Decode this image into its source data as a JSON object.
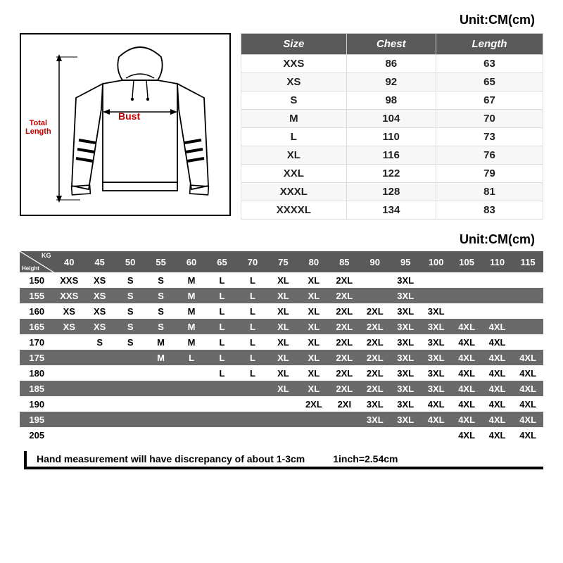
{
  "unit_label_top": "Unit:CM(cm)",
  "unit_label_bottom": "Unit:CM(cm)",
  "diagram": {
    "total_length_label": "Total\nLength",
    "bust_label": "Bust"
  },
  "size_table": {
    "columns": [
      "Size",
      "Chest",
      "Length"
    ],
    "rows": [
      [
        "XXS",
        "86",
        "63"
      ],
      [
        "XS",
        "92",
        "65"
      ],
      [
        "S",
        "98",
        "67"
      ],
      [
        "M",
        "104",
        "70"
      ],
      [
        "L",
        "110",
        "73"
      ],
      [
        "XL",
        "116",
        "76"
      ],
      [
        "XXL",
        "122",
        "79"
      ],
      [
        "XXXL",
        "128",
        "81"
      ],
      [
        "XXXXL",
        "134",
        "83"
      ]
    ],
    "header_bg": "#5a5a5a",
    "header_fg": "#ffffff"
  },
  "rec_table": {
    "corner_kg": "KG",
    "corner_height": "Height",
    "weights": [
      "40",
      "45",
      "50",
      "55",
      "60",
      "65",
      "70",
      "75",
      "80",
      "85",
      "90",
      "95",
      "100",
      "105",
      "110",
      "115"
    ],
    "heights": [
      "150",
      "155",
      "160",
      "165",
      "170",
      "175",
      "180",
      "185",
      "190",
      "195",
      "205"
    ],
    "cells": [
      [
        "XXS",
        "XS",
        "S",
        "S",
        "M",
        "L",
        "L",
        "XL",
        "XL",
        "2XL",
        "",
        "3XL",
        "",
        "",
        "",
        ""
      ],
      [
        "XXS",
        "XS",
        "S",
        "S",
        "M",
        "L",
        "L",
        "XL",
        "XL",
        "2XL",
        "",
        "3XL",
        "",
        "",
        "",
        ""
      ],
      [
        "XS",
        "XS",
        "S",
        "S",
        "M",
        "L",
        "L",
        "XL",
        "XL",
        "2XL",
        "2XL",
        "3XL",
        "3XL",
        "",
        "",
        ""
      ],
      [
        "XS",
        "XS",
        "S",
        "S",
        "M",
        "L",
        "L",
        "XL",
        "XL",
        "2XL",
        "2XL",
        "3XL",
        "3XL",
        "4XL",
        "4XL",
        ""
      ],
      [
        "",
        "S",
        "S",
        "M",
        "M",
        "L",
        "L",
        "XL",
        "XL",
        "2XL",
        "2XL",
        "3XL",
        "3XL",
        "4XL",
        "4XL",
        ""
      ],
      [
        "",
        "",
        "",
        "M",
        "L",
        "L",
        "L",
        "XL",
        "XL",
        "2XL",
        "2XL",
        "3XL",
        "3XL",
        "4XL",
        "4XL",
        "4XL"
      ],
      [
        "",
        "",
        "",
        "",
        "",
        "L",
        "L",
        "XL",
        "XL",
        "2XL",
        "2XL",
        "3XL",
        "3XL",
        "4XL",
        "4XL",
        "4XL"
      ],
      [
        "",
        "",
        "",
        "",
        "",
        "",
        "",
        "XL",
        "XL",
        "2XL",
        "2XL",
        "3XL",
        "3XL",
        "4XL",
        "4XL",
        "4XL"
      ],
      [
        "",
        "",
        "",
        "",
        "",
        "",
        "",
        "",
        "2XL",
        "2XI",
        "3XL",
        "3XL",
        "4XL",
        "4XL",
        "4XL",
        "4XL"
      ],
      [
        "",
        "",
        "",
        "",
        "",
        "",
        "",
        "",
        "",
        "",
        "3XL",
        "3XL",
        "4XL",
        "4XL",
        "4XL",
        "4XL"
      ],
      [
        "",
        "",
        "",
        "",
        "",
        "",
        "",
        "",
        "",
        "",
        "",
        "",
        "",
        "4XL",
        "4XL",
        "4XL"
      ]
    ],
    "dark_bg": "#6a6a6a",
    "light_bg": "#ffffff"
  },
  "footer": {
    "discrepancy": "Hand measurement will have discrepancy of about  1-3cm",
    "conversion": "1inch=2.54cm"
  }
}
